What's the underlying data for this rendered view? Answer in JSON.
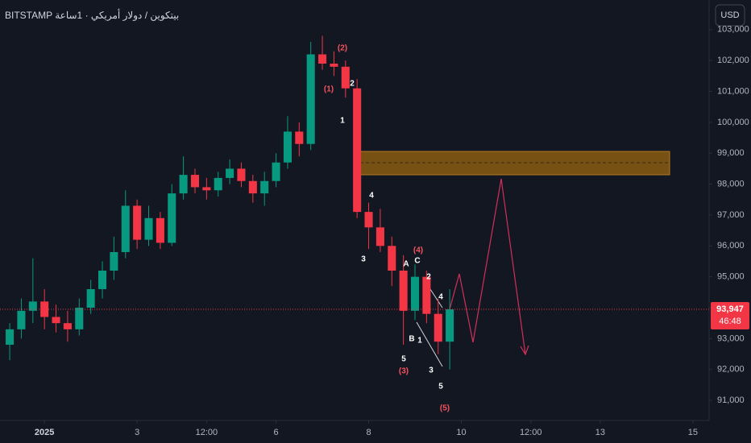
{
  "chart_data": {
    "type": "candlestick",
    "title": "BITSTAMP بيتكوين / دولار أمريكي · 1ساعة",
    "currency": "USD",
    "up_color": "#089981",
    "down_color": "#f23645",
    "x": [
      0.25,
      0.5,
      0.75,
      1,
      1.25,
      1.5,
      1.75,
      2,
      2.25,
      2.5,
      2.75,
      3,
      3.25,
      3.5,
      3.75,
      4,
      4.25,
      4.5,
      4.75,
      5,
      5.25,
      5.5,
      5.75,
      6,
      6.25,
      6.5,
      6.75,
      7,
      7.25,
      7.5,
      7.75,
      8,
      8.25,
      8.5,
      8.75,
      9,
      9.25,
      9.5,
      9.75
    ],
    "open": [
      92800,
      93300,
      93900,
      94200,
      93700,
      93500,
      93300,
      94000,
      94600,
      95200,
      95800,
      97300,
      96200,
      96900,
      96100,
      97700,
      98300,
      97900,
      97800,
      98200,
      98500,
      98100,
      97700,
      98100,
      98700,
      99700,
      99300,
      102200,
      101900,
      101800,
      101100,
      97100,
      96600,
      96000,
      95200,
      93900,
      95000,
      93800,
      92900
    ],
    "high": [
      93500,
      94300,
      95600,
      94600,
      94100,
      93900,
      94300,
      94900,
      95500,
      96300,
      97800,
      97500,
      97300,
      97100,
      98000,
      98900,
      98500,
      98200,
      98400,
      98800,
      98700,
      98300,
      98400,
      99000,
      100200,
      100000,
      102600,
      102800,
      102300,
      102000,
      101400,
      97400,
      97200,
      96300,
      95700,
      95400,
      95200,
      94300,
      94600
    ],
    "low": [
      92300,
      93000,
      93500,
      93300,
      93200,
      92900,
      93100,
      93800,
      94300,
      94900,
      95600,
      95900,
      96000,
      95900,
      96000,
      97500,
      97700,
      97500,
      97600,
      98000,
      97900,
      97400,
      97300,
      97900,
      98500,
      98900,
      99100,
      101700,
      101500,
      100800,
      96900,
      95900,
      95800,
      94700,
      92800,
      93600,
      93500,
      92500,
      92000
    ],
    "close": [
      93300,
      93900,
      94200,
      93700,
      93500,
      93300,
      94000,
      94600,
      95200,
      95800,
      97300,
      96200,
      96900,
      96100,
      97700,
      98300,
      97900,
      97800,
      98200,
      98500,
      98100,
      97700,
      98100,
      98700,
      99700,
      99300,
      102200,
      101900,
      101800,
      101100,
      97100,
      96600,
      96000,
      95200,
      93900,
      95000,
      93800,
      92900,
      93947
    ],
    "last_label": "93,947",
    "countdown": "46:48",
    "xlim": [
      0.04,
      15.35
    ],
    "xticks": [
      {
        "value": 1,
        "label": "2025"
      },
      3,
      {
        "value": 4.5,
        "label": "12:00"
      },
      6,
      8,
      10,
      {
        "value": 11.5,
        "label": "12:00"
      },
      13,
      15
    ],
    "ylim": [
      90350,
      103960
    ],
    "yticks": [
      {
        "value": 91000,
        "label": "91,000"
      },
      {
        "value": 92000,
        "label": "92,000"
      },
      {
        "value": 93000,
        "label": "93,000"
      },
      {
        "value": 94000,
        "label": "94,000"
      },
      {
        "value": 95000,
        "label": "95,000"
      },
      {
        "value": 96000,
        "label": "96,000"
      },
      {
        "value": 97000,
        "label": "97,000"
      },
      {
        "value": 98000,
        "label": "98,000"
      },
      {
        "value": 99000,
        "label": "99,000"
      },
      {
        "value": 100000,
        "label": "100,000"
      },
      {
        "value": 101000,
        "label": "101,000"
      },
      {
        "value": 102000,
        "label": "102,000"
      },
      {
        "value": 103000,
        "label": "103,000"
      }
    ],
    "grid": false,
    "annotations": [
      {
        "text": "(2)",
        "color": "#f7525f"
      },
      {
        "text": "(1)",
        "color": "#f7525f"
      },
      {
        "text": "2",
        "color": "#ffffff"
      },
      {
        "text": "1",
        "color": "#ffffff"
      },
      {
        "text": "4",
        "color": "#ffffff"
      },
      {
        "text": "3",
        "color": "#ffffff"
      },
      {
        "text": "(4)",
        "color": "#f7525f"
      },
      {
        "text": "A",
        "color": "#ffffff"
      },
      {
        "text": "C",
        "color": "#ffffff"
      },
      {
        "text": "2",
        "color": "#ffffff"
      },
      {
        "text": "B",
        "color": "#ffffff"
      },
      {
        "text": "1",
        "color": "#ffffff"
      },
      {
        "text": "4",
        "color": "#ffffff"
      },
      {
        "text": "5",
        "color": "#ffffff"
      },
      {
        "text": "(3)",
        "color": "#f7525f"
      },
      {
        "text": "3",
        "color": "#ffffff"
      },
      {
        "text": "5",
        "color": "#ffffff"
      },
      {
        "text": "(5)",
        "color": "#f7525f"
      }
    ]
  }
}
